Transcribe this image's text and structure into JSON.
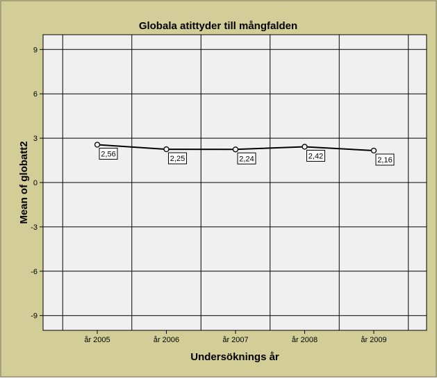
{
  "chart_data": {
    "type": "line",
    "title": "Globala atittyder till mångfalden",
    "xlabel": "Undersöknings år",
    "ylabel": "Mean of globatt2",
    "categories": [
      "år 2005",
      "år 2006",
      "år 2007",
      "år 2008",
      "år 2009"
    ],
    "series": [
      {
        "values": [
          2.56,
          2.25,
          2.24,
          2.42,
          2.16
        ],
        "labels": [
          "2,56",
          "2,25",
          "2,24",
          "2,42",
          "2,16"
        ]
      }
    ],
    "ylim": [
      -10,
      10
    ],
    "yticks": [
      -9,
      -6,
      -3,
      0,
      3,
      6,
      9
    ],
    "ytick_labels": [
      "-9",
      "-6",
      "-3",
      "0",
      "3",
      "6",
      "9"
    ],
    "grid": true,
    "colors": {
      "outer_background": "#D3CE97",
      "plot_background": "#F0F0F0",
      "line": "#000000"
    }
  }
}
